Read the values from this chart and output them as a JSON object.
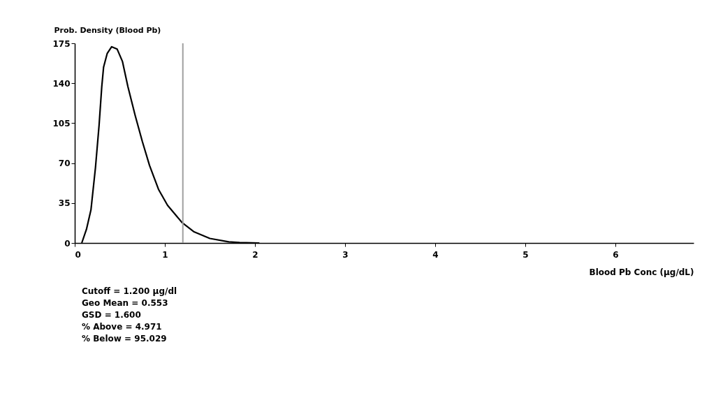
{
  "chart_data": {
    "type": "line",
    "xlabel": "Blood Pb Conc (µg/dL)",
    "ylabel": "Prob. Density (Blood Pb)",
    "x": [
      0.078,
      0.13,
      0.18,
      0.23,
      0.27,
      0.3,
      0.32,
      0.36,
      0.41,
      0.47,
      0.53,
      0.59,
      0.67,
      0.75,
      0.83,
      0.93,
      1.03,
      1.19,
      1.32,
      1.5,
      1.71,
      1.83,
      2.05
    ],
    "series": [
      {
        "color": "#000000",
        "values": [
          0,
          12,
          29,
          66,
          103,
          137,
          154,
          166,
          172,
          170,
          159,
          137,
          112,
          89,
          68,
          47,
          33,
          18,
          10,
          4,
          1,
          0.4,
          0
        ]
      }
    ],
    "xlim": [
      0,
      6.87
    ],
    "xticks": [
      0,
      1,
      2,
      3,
      4,
      5,
      6
    ],
    "ylim": [
      0,
      175
    ],
    "yticks": [
      0,
      35,
      70,
      105,
      140,
      175
    ],
    "grid": false,
    "legend": false,
    "marker": "none",
    "line_style": "solid",
    "ref_lines": [
      {
        "axis": "x",
        "value": 1.2,
        "color": "#a0a0a0",
        "line_style": "solid"
      }
    ],
    "annotations": [
      "Cutoff = 1.200  µg/dl",
      "Geo Mean = 0.553",
      "GSD = 1.600",
      "% Above = 4.971",
      "% Below = 95.029"
    ]
  }
}
